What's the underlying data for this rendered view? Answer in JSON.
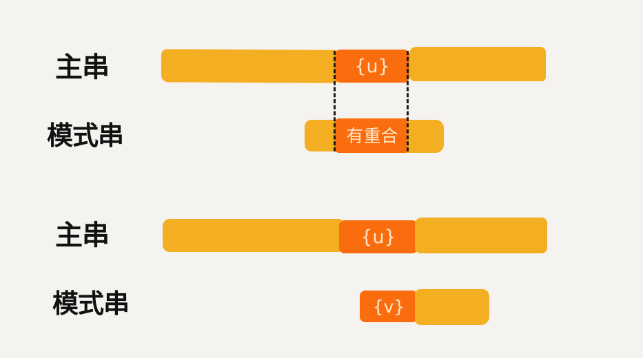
{
  "colors": {
    "background": "#f4f3ef",
    "string_bar": "#f4ae22",
    "highlight_segment": "#f96d0f",
    "segment_text": "#fde7c8",
    "label_text": "#111111",
    "dashed_guide": "#1a1a1a"
  },
  "diagram_top": {
    "main_label": "主串",
    "pattern_label": "模式串",
    "main_segment_text": "{u}",
    "pattern_segment_text": "有重合"
  },
  "diagram_bottom": {
    "main_label": "主串",
    "pattern_label": "模式串",
    "main_segment_text": "{u}",
    "pattern_segment_text": "{v}"
  }
}
